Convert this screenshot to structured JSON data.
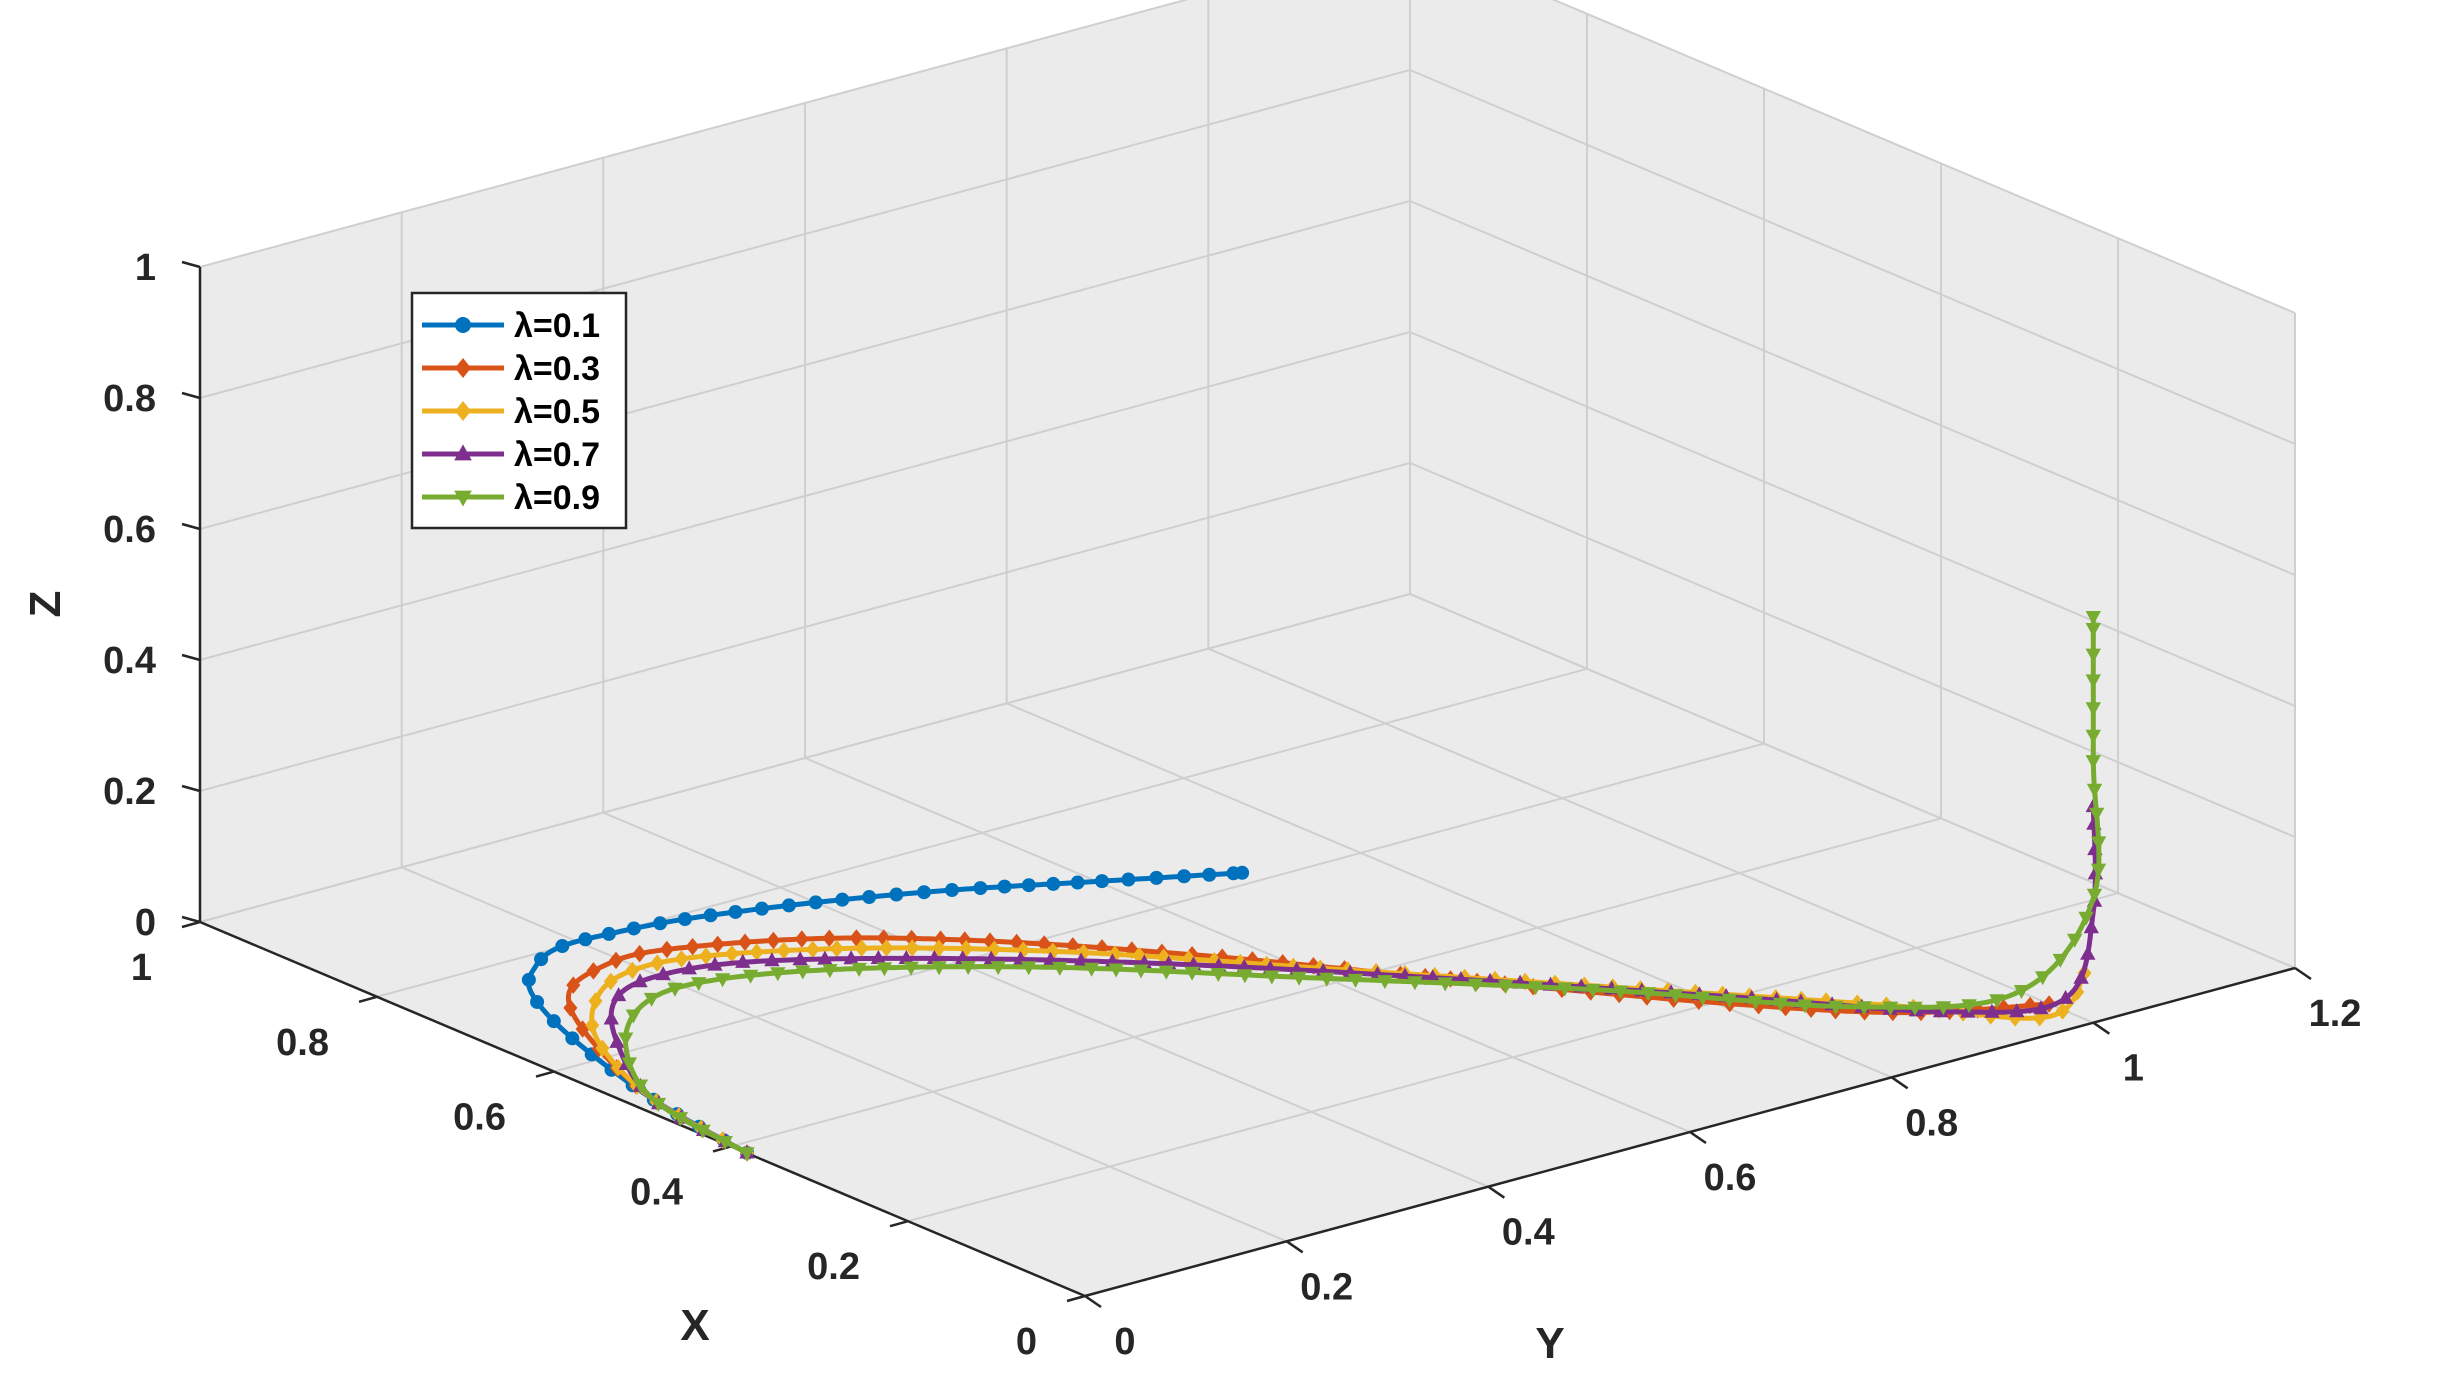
{
  "chart_data": {
    "type": "line3d",
    "xlabel": "X",
    "ylabel": "Y",
    "zlabel": "Z",
    "xlim": [
      0,
      1
    ],
    "ylim": [
      0,
      1.2
    ],
    "zlim": [
      0,
      1
    ],
    "x_ticks": [
      "0",
      "0.2",
      "0.4",
      "0.6",
      "0.8",
      "1"
    ],
    "y_ticks": [
      "0",
      "0.2",
      "0.4",
      "0.6",
      "0.8",
      "1",
      "1.2"
    ],
    "z_ticks": [
      "0",
      "0.2",
      "0.4",
      "0.6",
      "0.8",
      "1"
    ],
    "grid": true,
    "legend_position": "top-left",
    "series": [
      {
        "name": "λ=0.1",
        "color": "#0072BD",
        "marker": "circle",
        "points": [
          [
            0.38,
            0.0,
            0.0
          ],
          [
            0.51,
            0.02,
            0.0
          ],
          [
            0.65,
            0.06,
            0.0
          ],
          [
            0.74,
            0.1,
            0.0
          ],
          [
            0.78,
            0.14,
            0.0
          ],
          [
            0.8,
            0.18,
            0.0
          ],
          [
            0.8,
            0.23,
            0.0
          ],
          [
            0.79,
            0.3,
            0.0
          ],
          [
            0.76,
            0.4,
            0.0
          ],
          [
            0.72,
            0.5,
            0.0
          ],
          [
            0.67,
            0.6,
            0.0
          ],
          [
            0.62,
            0.7,
            0.0
          ]
        ]
      },
      {
        "name": "λ=0.3",
        "color": "#D95319",
        "marker": "diamond",
        "points": [
          [
            0.38,
            0.0,
            0.0
          ],
          [
            0.51,
            0.02,
            0.0
          ],
          [
            0.64,
            0.07,
            0.0
          ],
          [
            0.72,
            0.12,
            0.0
          ],
          [
            0.75,
            0.18,
            0.0
          ],
          [
            0.75,
            0.24,
            0.0
          ],
          [
            0.7,
            0.35,
            0.0
          ],
          [
            0.62,
            0.45,
            0.0
          ],
          [
            0.5,
            0.56,
            0.0
          ],
          [
            0.36,
            0.67,
            0.0
          ],
          [
            0.2,
            0.8,
            0.0
          ],
          [
            0.1,
            0.9,
            0.0
          ],
          [
            0.05,
            1.0,
            0.0
          ]
        ]
      },
      {
        "name": "λ=0.5",
        "color": "#EDB120",
        "marker": "diamond",
        "points": [
          [
            0.38,
            0.0,
            0.0
          ],
          [
            0.51,
            0.02,
            0.0
          ],
          [
            0.63,
            0.07,
            0.0
          ],
          [
            0.7,
            0.13,
            0.0
          ],
          [
            0.73,
            0.19,
            0.0
          ],
          [
            0.72,
            0.26,
            0.0
          ],
          [
            0.66,
            0.37,
            0.0
          ],
          [
            0.56,
            0.49,
            0.0
          ],
          [
            0.42,
            0.62,
            0.0
          ],
          [
            0.26,
            0.77,
            0.0
          ],
          [
            0.12,
            0.9,
            0.0
          ],
          [
            0.03,
            0.98,
            0.0
          ],
          [
            0.01,
            1.0,
            0.07
          ]
        ]
      },
      {
        "name": "λ=0.7",
        "color": "#7E2F8E",
        "marker": "triangle",
        "points": [
          [
            0.38,
            0.0,
            0.0
          ],
          [
            0.51,
            0.02,
            0.0
          ],
          [
            0.62,
            0.08,
            0.0
          ],
          [
            0.69,
            0.14,
            0.0
          ],
          [
            0.71,
            0.2,
            0.0
          ],
          [
            0.69,
            0.28,
            0.0
          ],
          [
            0.61,
            0.4,
            0.0
          ],
          [
            0.5,
            0.53,
            0.0
          ],
          [
            0.36,
            0.67,
            0.0
          ],
          [
            0.2,
            0.82,
            0.0
          ],
          [
            0.08,
            0.93,
            0.0
          ],
          [
            0.02,
            0.99,
            0.03
          ],
          [
            0.0,
            1.0,
            0.17
          ],
          [
            0.0,
            1.0,
            0.33
          ]
        ]
      },
      {
        "name": "λ=0.9",
        "color": "#77AC30",
        "marker": "triangle-down",
        "points": [
          [
            0.38,
            0.0,
            0.0
          ],
          [
            0.51,
            0.02,
            0.0
          ],
          [
            0.61,
            0.08,
            0.0
          ],
          [
            0.67,
            0.15,
            0.0
          ],
          [
            0.68,
            0.22,
            0.0
          ],
          [
            0.64,
            0.32,
            0.0
          ],
          [
            0.55,
            0.45,
            0.0
          ],
          [
            0.42,
            0.59,
            0.0
          ],
          [
            0.27,
            0.75,
            0.0
          ],
          [
            0.13,
            0.88,
            0.0
          ],
          [
            0.04,
            0.96,
            0.04
          ],
          [
            0.0,
            1.0,
            0.19
          ],
          [
            0.0,
            1.0,
            0.4
          ],
          [
            0.0,
            1.0,
            0.62
          ]
        ]
      }
    ]
  }
}
